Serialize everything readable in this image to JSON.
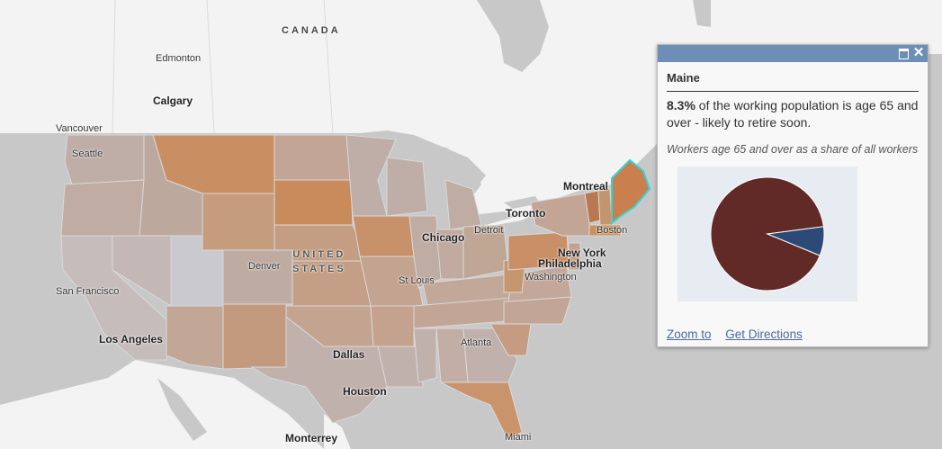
{
  "map": {
    "labels": {
      "canada": "CANADA",
      "united": "UNITED",
      "states": "STATES",
      "edmonton": "Edmonton",
      "calgary": "Calgary",
      "vancouver": "Vancouver",
      "seattle": "Seattle",
      "montreal": "Montreal",
      "toronto": "Toronto",
      "detroit": "Detroit",
      "chicago": "Chicago",
      "boston": "Boston",
      "new_york": "New York",
      "philadelphia": "Philadelphia",
      "washington": "Washington",
      "denver": "Denver",
      "st_louis": "St Louis",
      "san_francisco": "San Francisco",
      "los_angeles": "Los Angeles",
      "dallas": "Dallas",
      "atlanta": "Atlanta",
      "houston": "Houston",
      "monterrey": "Monterrey",
      "miami": "Miami"
    },
    "colors": {
      "land": "#f4f4f4",
      "water": "#c8c8c8",
      "low": "#c6c6cc",
      "mid": "#bca69c",
      "high": "#c98b5b",
      "selected_outline": "#33d6d6"
    }
  },
  "popup": {
    "title": "Maine",
    "highlight": "8.3%",
    "description_rest": " of the working population is age 65 and over - likely to retire soon.",
    "chart_caption": "Workers age 65 and over as a share of all workers",
    "links": {
      "zoom_to": "Zoom to",
      "get_directions": "Get Directions"
    },
    "icons": {
      "maximize": "maximize-icon",
      "close": "close-icon"
    },
    "colors": {
      "titlebar": "#6d8fb6",
      "slice_main": "#622a27",
      "slice_highlight": "#2c4a75"
    }
  },
  "chart_data": {
    "type": "pie",
    "title": "",
    "values": [
      91.7,
      8.3
    ],
    "colors": [
      "#622a27",
      "#2c4a75"
    ]
  }
}
